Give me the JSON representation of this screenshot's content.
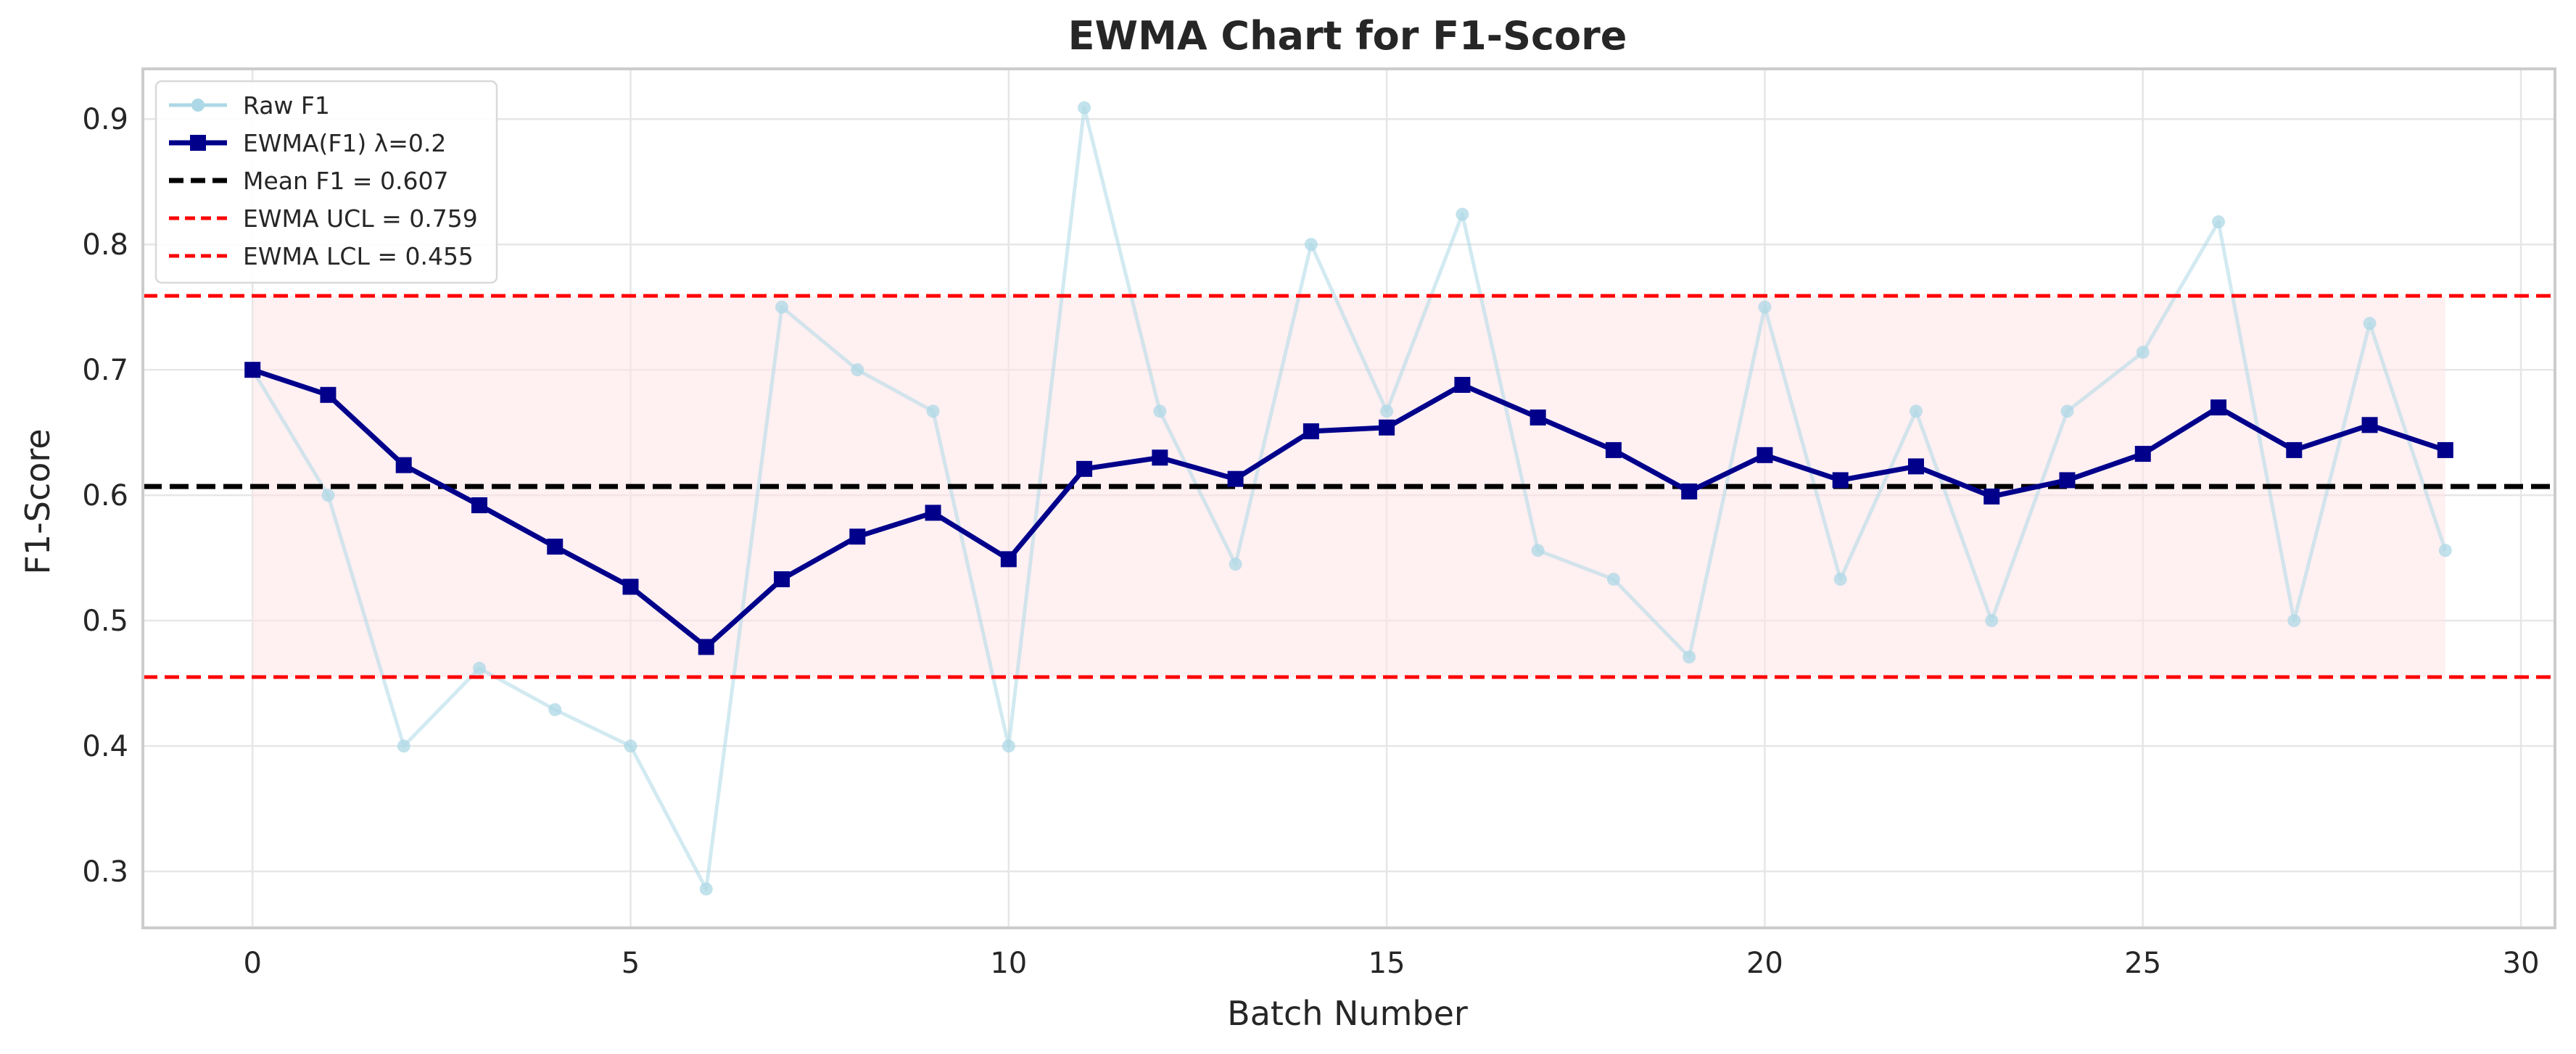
{
  "chart_data": {
    "type": "line",
    "title": "EWMA Chart for F1-Score",
    "xlabel": "Batch Number",
    "ylabel": "F1-Score",
    "xlim": [
      -1.45,
      30.45
    ],
    "ylim": [
      0.255,
      0.94
    ],
    "x_ticks": [
      0,
      5,
      10,
      15,
      20,
      25,
      30
    ],
    "x_tick_labels": [
      "0",
      "5",
      "10",
      "15",
      "20",
      "25",
      "30"
    ],
    "y_ticks": [
      0.3,
      0.4,
      0.5,
      0.6,
      0.7,
      0.8,
      0.9
    ],
    "y_tick_labels": [
      "0.3",
      "0.4",
      "0.5",
      "0.6",
      "0.7",
      "0.8",
      "0.9"
    ],
    "grid": true,
    "legend_position": "top-left",
    "x": [
      0,
      1,
      2,
      3,
      4,
      5,
      6,
      7,
      8,
      9,
      10,
      11,
      12,
      13,
      14,
      15,
      16,
      17,
      18,
      19,
      20,
      21,
      22,
      23,
      24,
      25,
      26,
      27,
      28,
      29
    ],
    "series": [
      {
        "name": "Raw F1",
        "color": "#add8e6",
        "marker": "circle",
        "values": [
          0.7,
          0.6,
          0.4,
          0.462,
          0.429,
          0.4,
          0.286,
          0.75,
          0.7,
          0.667,
          0.4,
          0.909,
          0.667,
          0.545,
          0.8,
          0.667,
          0.824,
          0.556,
          0.533,
          0.471,
          0.75,
          0.533,
          0.667,
          0.5,
          0.667,
          0.714,
          0.818,
          0.5,
          0.737,
          0.556
        ]
      },
      {
        "name": "EWMA(F1) λ=0.2",
        "color": "#00008b",
        "marker": "square",
        "values": [
          0.7,
          0.68,
          0.624,
          0.592,
          0.559,
          0.527,
          0.479,
          0.533,
          0.567,
          0.586,
          0.549,
          0.621,
          0.63,
          0.613,
          0.651,
          0.654,
          0.688,
          0.662,
          0.636,
          0.603,
          0.632,
          0.612,
          0.623,
          0.599,
          0.612,
          0.633,
          0.67,
          0.636,
          0.656,
          0.636
        ]
      }
    ],
    "reference_lines": [
      {
        "name": "Mean F1 = 0.607",
        "value": 0.607,
        "color": "#000000",
        "style": "dashed"
      },
      {
        "name": "EWMA UCL = 0.759",
        "value": 0.759,
        "color": "#ff0000",
        "style": "dashed"
      },
      {
        "name": "EWMA LCL = 0.455",
        "value": 0.455,
        "color": "#ff0000",
        "style": "dashed"
      }
    ],
    "control_band": {
      "from": 0.455,
      "to": 0.759,
      "x_start": 0,
      "x_end": 29,
      "color": "#ffe4e8"
    }
  }
}
